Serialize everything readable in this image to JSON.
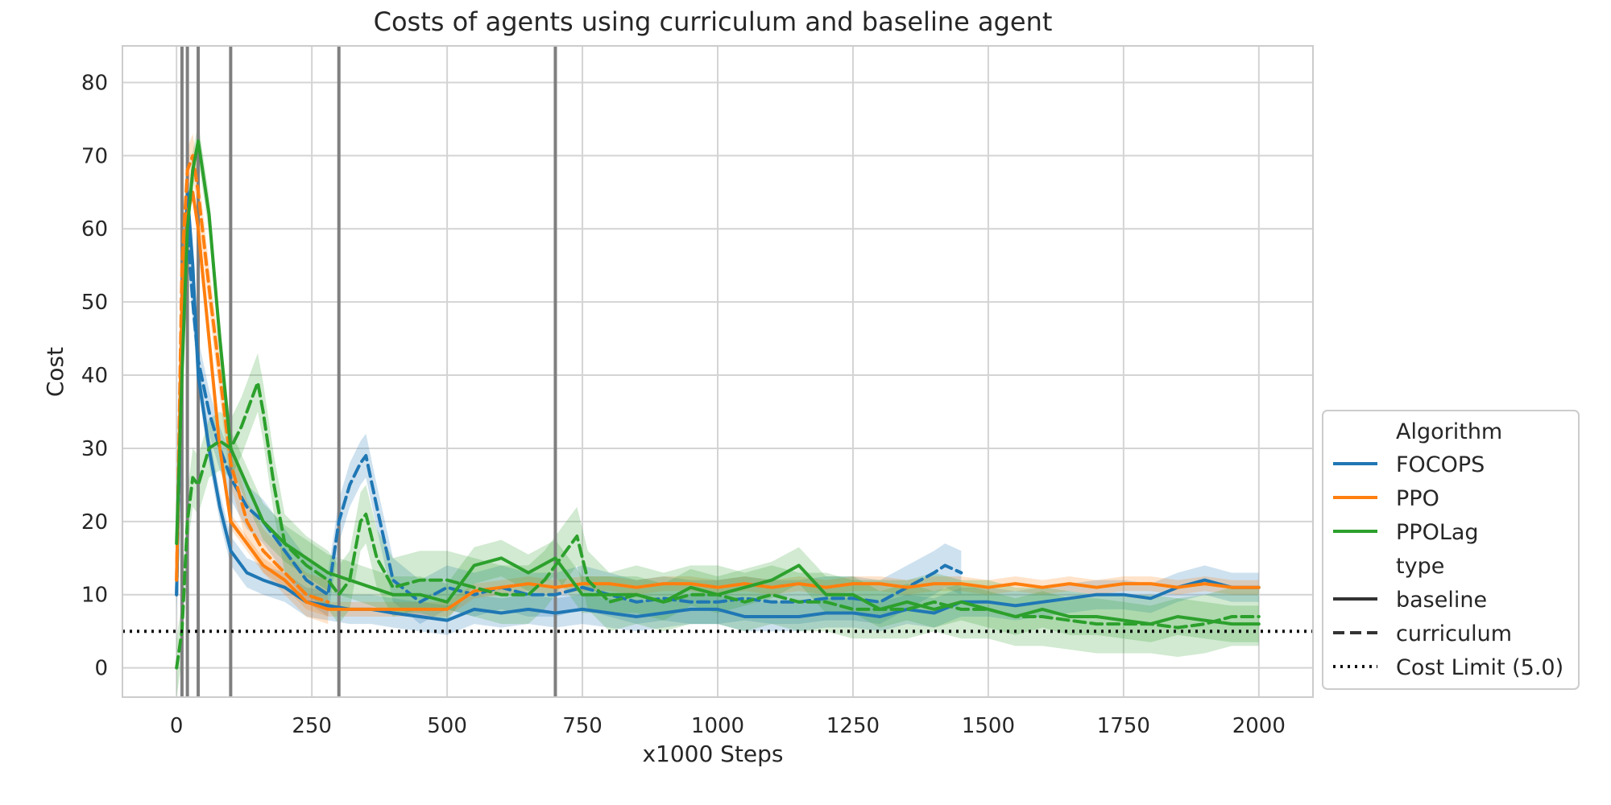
{
  "chart_data": {
    "type": "line",
    "title": "Costs of agents using curriculum and baseline agent",
    "xlabel": "x1000 Steps",
    "ylabel": "Cost",
    "xlim": [
      -100,
      2100
    ],
    "ylim": [
      -4,
      85
    ],
    "xticks": [
      0,
      250,
      500,
      750,
      1000,
      1250,
      1500,
      1750,
      2000
    ],
    "yticks": [
      0,
      10,
      20,
      30,
      40,
      50,
      60,
      70,
      80
    ],
    "grid": true,
    "legend_position": "lower-right outside plot",
    "cost_limit": 5.0,
    "curriculum_switch_steps": [
      10,
      20,
      40,
      100,
      300,
      700
    ],
    "legend": {
      "group1_title": "Algorithm",
      "algorithms": [
        "FOCOPS",
        "PPO",
        "PPOLag"
      ],
      "group2_title": "type",
      "types": [
        "baseline",
        "curriculum"
      ],
      "limit_label": "Cost Limit (5.0)"
    },
    "colors": {
      "FOCOPS": "#1f77b4",
      "PPO": "#ff7f0e",
      "PPOLag": "#2ca02c",
      "limit": "#111111",
      "switch": "#7f7f7f",
      "grid": "#d4d4d4"
    },
    "series": [
      {
        "name": "FOCOPS",
        "type": "baseline",
        "band": 2.0,
        "x": [
          0,
          10,
          20,
          30,
          40,
          60,
          80,
          100,
          130,
          160,
          200,
          240,
          280,
          320,
          360,
          400,
          450,
          500,
          550,
          600,
          650,
          700,
          750,
          800,
          850,
          900,
          950,
          1000,
          1050,
          1100,
          1150,
          1200,
          1250,
          1300,
          1350,
          1400,
          1450,
          1500,
          1550,
          1600,
          1650,
          1700,
          1750,
          1800,
          1850,
          1900,
          1950,
          2000
        ],
        "y": [
          10,
          45,
          65,
          55,
          40,
          30,
          22,
          16,
          13,
          12,
          11,
          9,
          8.5,
          8,
          8,
          7.5,
          7,
          6.5,
          8,
          7.5,
          8,
          7.5,
          8,
          7.5,
          7,
          7.5,
          8,
          8,
          7,
          7,
          7,
          7.5,
          7.5,
          7,
          8,
          7.5,
          9,
          9,
          8.5,
          9,
          9.5,
          10,
          10,
          9.5,
          11,
          12,
          11,
          11
        ]
      },
      {
        "name": "FOCOPS",
        "type": "curriculum",
        "band": 3.0,
        "x": [
          0,
          10,
          20,
          30,
          40,
          60,
          80,
          100,
          130,
          160,
          200,
          240,
          280,
          300,
          320,
          340,
          350,
          370,
          400,
          450,
          500,
          550,
          600,
          650,
          700,
          750,
          800,
          850,
          900,
          950,
          1000,
          1050,
          1100,
          1150,
          1200,
          1250,
          1300,
          1350,
          1400,
          1420,
          1450
        ],
        "y": [
          10,
          45,
          60,
          50,
          42,
          35,
          30,
          26,
          22,
          20,
          16,
          12,
          10,
          20,
          25,
          28,
          29,
          22,
          12,
          9,
          11,
          10,
          11,
          10,
          10,
          11,
          10,
          9,
          9.5,
          9,
          9,
          9.5,
          9,
          9,
          9.5,
          9.5,
          9,
          11,
          13,
          14,
          13
        ]
      },
      {
        "name": "PPO",
        "type": "baseline",
        "band": 1.0,
        "x": [
          0,
          10,
          20,
          30,
          40,
          60,
          80,
          100,
          130,
          160,
          200,
          240,
          280,
          320,
          360,
          400,
          450,
          500,
          550,
          600,
          650,
          700,
          750,
          800,
          850,
          900,
          950,
          1000,
          1050,
          1100,
          1150,
          1200,
          1250,
          1300,
          1350,
          1400,
          1450,
          1500,
          1550,
          1600,
          1650,
          1700,
          1750,
          1800,
          1850,
          1900,
          1950,
          2000
        ],
        "y": [
          12,
          50,
          62,
          65,
          60,
          45,
          30,
          20,
          17,
          14,
          12,
          9,
          8,
          8,
          8,
          8,
          8,
          8,
          10.5,
          11,
          11.5,
          11,
          11.5,
          11.5,
          11,
          11.5,
          11.5,
          11,
          11.5,
          11,
          11.5,
          11,
          11.5,
          11.5,
          11,
          11.5,
          11.5,
          11,
          11.5,
          11,
          11.5,
          11,
          11.5,
          11.5,
          11,
          11.5,
          11,
          11
        ]
      },
      {
        "name": "PPO",
        "type": "curriculum",
        "band": 3.0,
        "x": [
          0,
          10,
          20,
          30,
          40,
          60,
          80,
          100,
          130,
          160,
          200,
          240,
          280
        ],
        "y": [
          12,
          55,
          68,
          70,
          65,
          52,
          40,
          28,
          20,
          16,
          13,
          10,
          9
        ]
      },
      {
        "name": "PPOLag",
        "type": "baseline",
        "band": 2.5,
        "x": [
          0,
          10,
          20,
          30,
          40,
          60,
          80,
          100,
          130,
          160,
          200,
          240,
          280,
          320,
          360,
          400,
          450,
          500,
          550,
          600,
          650,
          700,
          750,
          800,
          850,
          900,
          950,
          1000,
          1050,
          1100,
          1150,
          1200,
          1250,
          1300,
          1350,
          1400,
          1450,
          1500,
          1550,
          1600,
          1650,
          1700,
          1750,
          1800,
          1850,
          1900,
          1950,
          2000
        ],
        "y": [
          17,
          40,
          60,
          68,
          72,
          62,
          45,
          30,
          25,
          20,
          17,
          15,
          13,
          12,
          11,
          10,
          10,
          9,
          14,
          15,
          13,
          15,
          10,
          10,
          10,
          9,
          11,
          10,
          11,
          12,
          14,
          10,
          10,
          8,
          9,
          8,
          9,
          8,
          7,
          8,
          7,
          7,
          6.5,
          6,
          7,
          6.5,
          6,
          6
        ]
      },
      {
        "name": "PPOLag",
        "type": "curriculum",
        "band": 4.0,
        "x": [
          0,
          10,
          20,
          30,
          40,
          60,
          80,
          100,
          120,
          140,
          150,
          160,
          180,
          200,
          240,
          280,
          300,
          320,
          340,
          350,
          370,
          400,
          450,
          500,
          550,
          600,
          650,
          680,
          700,
          720,
          740,
          760,
          800,
          850,
          900,
          950,
          1000,
          1050,
          1100,
          1150,
          1200,
          1250,
          1300,
          1350,
          1400,
          1450,
          1500,
          1550,
          1600,
          1650,
          1700,
          1750,
          1800,
          1850,
          1900,
          1950,
          2000
        ],
        "y": [
          0,
          5,
          20,
          26,
          25,
          30,
          31,
          30,
          33,
          37,
          39,
          35,
          25,
          17,
          14,
          12,
          10,
          12,
          20,
          21,
          15,
          11,
          12,
          12,
          11,
          10,
          10,
          12,
          14,
          16,
          18,
          12,
          9,
          10,
          9,
          10,
          10,
          9,
          10,
          9,
          9,
          8,
          8,
          8,
          9,
          8,
          8,
          7,
          7,
          6.5,
          6,
          6,
          6,
          5.5,
          6,
          7,
          7
        ]
      }
    ]
  }
}
